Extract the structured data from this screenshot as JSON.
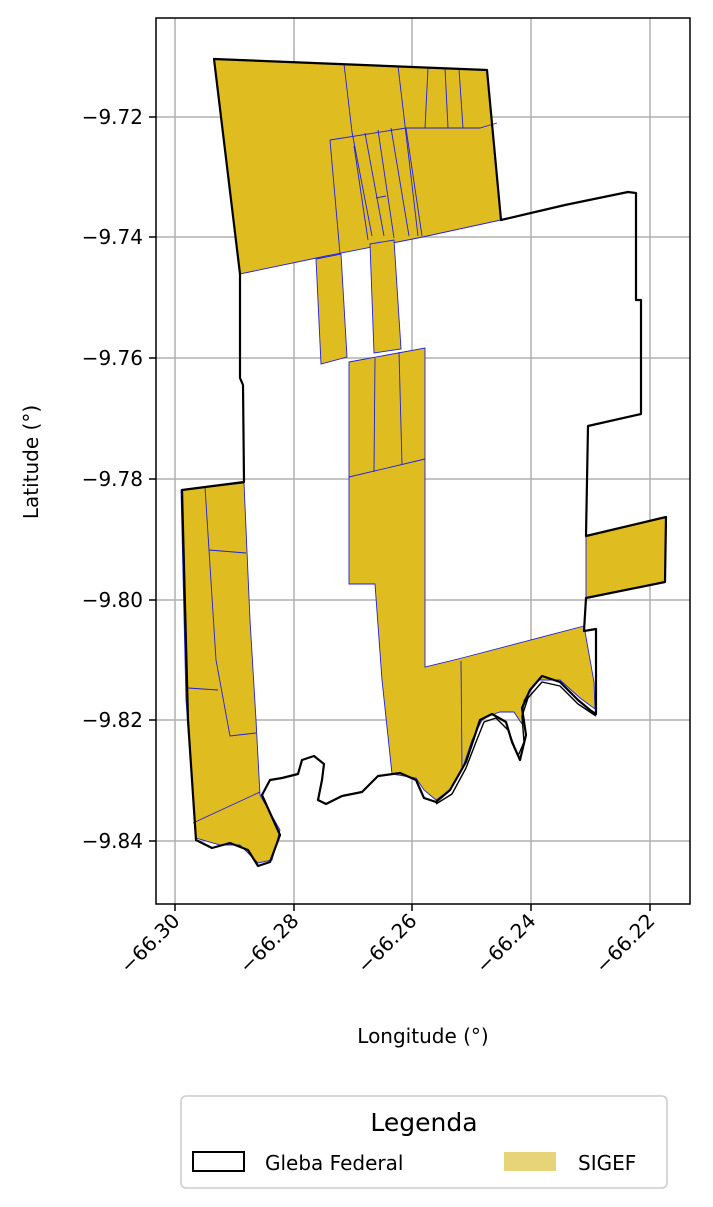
{
  "map": {
    "xlabel": "Longitude (°)",
    "ylabel": "Latitude (°)",
    "x_ticks": [
      "−66.30",
      "−66.28",
      "−66.26",
      "−66.24",
      "−66.22"
    ],
    "y_ticks": [
      "−9.72",
      "−9.74",
      "−9.76",
      "−9.78",
      "−9.80",
      "−9.82",
      "−9.84"
    ],
    "grid": true,
    "legend": {
      "title": "Legenda",
      "placement": "bottom-center",
      "items": [
        {
          "label": "Gleba Federal",
          "style": "outline",
          "color": "#000000"
        },
        {
          "label": "SIGEF",
          "style": "fill",
          "color": "#E8D478"
        }
      ]
    },
    "colors": {
      "sigef_fill": "#DFBC20",
      "sigef_edge": "#1F1FE0",
      "gleba_edge": "#000000",
      "grid": "#B0B0B0"
    }
  }
}
